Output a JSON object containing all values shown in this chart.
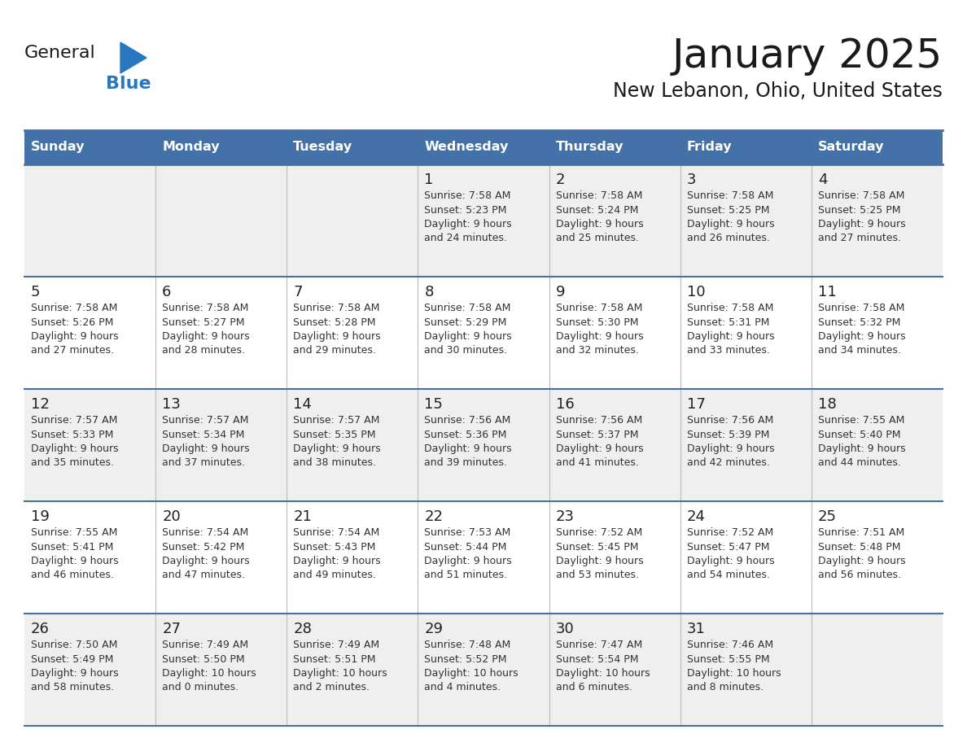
{
  "title": "January 2025",
  "subtitle": "New Lebanon, Ohio, United States",
  "days_of_week": [
    "Sunday",
    "Monday",
    "Tuesday",
    "Wednesday",
    "Thursday",
    "Friday",
    "Saturday"
  ],
  "header_bg": "#4472a8",
  "header_text": "#FFFFFF",
  "cell_bg_odd": "#EFEFEF",
  "cell_bg_even": "#FFFFFF",
  "border_color": "#4472a8",
  "row_line_color": "#4472a8",
  "title_color": "#1a1a1a",
  "subtitle_color": "#1a1a1a",
  "day_num_color": "#222222",
  "cell_text_color": "#333333",
  "logo_general_color": "#1a1a1a",
  "logo_blue_color": "#2878C0",
  "logo_triangle_color": "#2878C0",
  "calendar_data": [
    [
      {
        "day": null,
        "info": null
      },
      {
        "day": null,
        "info": null
      },
      {
        "day": null,
        "info": null
      },
      {
        "day": 1,
        "info": "Sunrise: 7:58 AM\nSunset: 5:23 PM\nDaylight: 9 hours\nand 24 minutes."
      },
      {
        "day": 2,
        "info": "Sunrise: 7:58 AM\nSunset: 5:24 PM\nDaylight: 9 hours\nand 25 minutes."
      },
      {
        "day": 3,
        "info": "Sunrise: 7:58 AM\nSunset: 5:25 PM\nDaylight: 9 hours\nand 26 minutes."
      },
      {
        "day": 4,
        "info": "Sunrise: 7:58 AM\nSunset: 5:25 PM\nDaylight: 9 hours\nand 27 minutes."
      }
    ],
    [
      {
        "day": 5,
        "info": "Sunrise: 7:58 AM\nSunset: 5:26 PM\nDaylight: 9 hours\nand 27 minutes."
      },
      {
        "day": 6,
        "info": "Sunrise: 7:58 AM\nSunset: 5:27 PM\nDaylight: 9 hours\nand 28 minutes."
      },
      {
        "day": 7,
        "info": "Sunrise: 7:58 AM\nSunset: 5:28 PM\nDaylight: 9 hours\nand 29 minutes."
      },
      {
        "day": 8,
        "info": "Sunrise: 7:58 AM\nSunset: 5:29 PM\nDaylight: 9 hours\nand 30 minutes."
      },
      {
        "day": 9,
        "info": "Sunrise: 7:58 AM\nSunset: 5:30 PM\nDaylight: 9 hours\nand 32 minutes."
      },
      {
        "day": 10,
        "info": "Sunrise: 7:58 AM\nSunset: 5:31 PM\nDaylight: 9 hours\nand 33 minutes."
      },
      {
        "day": 11,
        "info": "Sunrise: 7:58 AM\nSunset: 5:32 PM\nDaylight: 9 hours\nand 34 minutes."
      }
    ],
    [
      {
        "day": 12,
        "info": "Sunrise: 7:57 AM\nSunset: 5:33 PM\nDaylight: 9 hours\nand 35 minutes."
      },
      {
        "day": 13,
        "info": "Sunrise: 7:57 AM\nSunset: 5:34 PM\nDaylight: 9 hours\nand 37 minutes."
      },
      {
        "day": 14,
        "info": "Sunrise: 7:57 AM\nSunset: 5:35 PM\nDaylight: 9 hours\nand 38 minutes."
      },
      {
        "day": 15,
        "info": "Sunrise: 7:56 AM\nSunset: 5:36 PM\nDaylight: 9 hours\nand 39 minutes."
      },
      {
        "day": 16,
        "info": "Sunrise: 7:56 AM\nSunset: 5:37 PM\nDaylight: 9 hours\nand 41 minutes."
      },
      {
        "day": 17,
        "info": "Sunrise: 7:56 AM\nSunset: 5:39 PM\nDaylight: 9 hours\nand 42 minutes."
      },
      {
        "day": 18,
        "info": "Sunrise: 7:55 AM\nSunset: 5:40 PM\nDaylight: 9 hours\nand 44 minutes."
      }
    ],
    [
      {
        "day": 19,
        "info": "Sunrise: 7:55 AM\nSunset: 5:41 PM\nDaylight: 9 hours\nand 46 minutes."
      },
      {
        "day": 20,
        "info": "Sunrise: 7:54 AM\nSunset: 5:42 PM\nDaylight: 9 hours\nand 47 minutes."
      },
      {
        "day": 21,
        "info": "Sunrise: 7:54 AM\nSunset: 5:43 PM\nDaylight: 9 hours\nand 49 minutes."
      },
      {
        "day": 22,
        "info": "Sunrise: 7:53 AM\nSunset: 5:44 PM\nDaylight: 9 hours\nand 51 minutes."
      },
      {
        "day": 23,
        "info": "Sunrise: 7:52 AM\nSunset: 5:45 PM\nDaylight: 9 hours\nand 53 minutes."
      },
      {
        "day": 24,
        "info": "Sunrise: 7:52 AM\nSunset: 5:47 PM\nDaylight: 9 hours\nand 54 minutes."
      },
      {
        "day": 25,
        "info": "Sunrise: 7:51 AM\nSunset: 5:48 PM\nDaylight: 9 hours\nand 56 minutes."
      }
    ],
    [
      {
        "day": 26,
        "info": "Sunrise: 7:50 AM\nSunset: 5:49 PM\nDaylight: 9 hours\nand 58 minutes."
      },
      {
        "day": 27,
        "info": "Sunrise: 7:49 AM\nSunset: 5:50 PM\nDaylight: 10 hours\nand 0 minutes."
      },
      {
        "day": 28,
        "info": "Sunrise: 7:49 AM\nSunset: 5:51 PM\nDaylight: 10 hours\nand 2 minutes."
      },
      {
        "day": 29,
        "info": "Sunrise: 7:48 AM\nSunset: 5:52 PM\nDaylight: 10 hours\nand 4 minutes."
      },
      {
        "day": 30,
        "info": "Sunrise: 7:47 AM\nSunset: 5:54 PM\nDaylight: 10 hours\nand 6 minutes."
      },
      {
        "day": 31,
        "info": "Sunrise: 7:46 AM\nSunset: 5:55 PM\nDaylight: 10 hours\nand 8 minutes."
      },
      {
        "day": null,
        "info": null
      }
    ]
  ]
}
